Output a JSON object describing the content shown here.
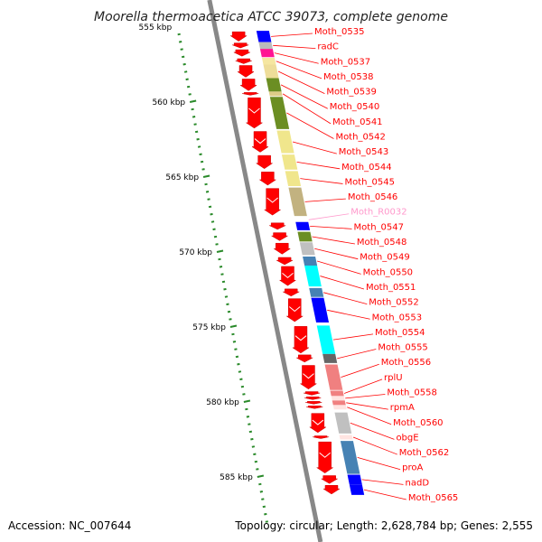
{
  "title": "Moorella thermoacetica ATCC 39073, complete genome",
  "footer": {
    "accession": "Accession: NC_007644",
    "summary": "Topology: circular; Length: 2,628,784 bp; Genes: 2,555"
  },
  "colors": {
    "label_line": "#ff0000",
    "rna_label": "#ff99cc",
    "cds_arrow": "#ff0000",
    "backbone": "#888888",
    "tick": "#2a8a2a"
  },
  "scale_labels": [
    {
      "text": "555 kbp",
      "kbp": 555
    },
    {
      "text": "560 kbp",
      "kbp": 560
    },
    {
      "text": "565 kbp",
      "kbp": 565
    },
    {
      "text": "570 kbp",
      "kbp": 570
    },
    {
      "text": "575 kbp",
      "kbp": 575
    },
    {
      "text": "580 kbp",
      "kbp": 580
    },
    {
      "text": "585 kbp",
      "kbp": 585
    }
  ],
  "genes": [
    {
      "label": "Moth_0535",
      "type": "cds",
      "color": "#0000ff",
      "start": 555.25,
      "end": 556.0
    },
    {
      "label": "radC",
      "type": "cds",
      "color": "#bbbbbb",
      "start": 556.0,
      "end": 556.45
    },
    {
      "label": "Moth_0537",
      "type": "cds",
      "color": "#ff1493",
      "start": 556.45,
      "end": 557.0
    },
    {
      "label": "Moth_0538",
      "type": "cds",
      "color": "#f5e6a0",
      "start": 557.05,
      "end": 557.5
    },
    {
      "label": "Moth_0539",
      "type": "cds",
      "color": "#eedd99",
      "start": 557.5,
      "end": 558.4
    },
    {
      "label": "Moth_0540",
      "type": "cds",
      "color": "#6b8e23",
      "start": 558.4,
      "end": 559.3
    },
    {
      "label": "Moth_0541",
      "type": "cds",
      "color": "#ddcc88",
      "start": 559.3,
      "end": 559.6
    },
    {
      "label": "Moth_0542",
      "type": "cds",
      "color": "#6b8e23",
      "start": 559.65,
      "end": 561.8
    },
    {
      "label": "Moth_0543",
      "type": "cds",
      "color": "#f0e68c",
      "start": 561.9,
      "end": 563.4
    },
    {
      "label": "Moth_0544",
      "type": "cds",
      "color": "#f0e68c",
      "start": 563.5,
      "end": 564.5
    },
    {
      "label": "Moth_0545",
      "type": "cds",
      "color": "#f0e68c",
      "start": 564.6,
      "end": 565.6
    },
    {
      "label": "Moth_0546",
      "type": "cds",
      "color": "#c2b280",
      "start": 565.7,
      "end": 567.6
    },
    {
      "label": "Moth_R0032",
      "type": "rna",
      "color": "#ff99cc",
      "start": 567.75,
      "end": 567.95
    },
    {
      "label": "Moth_0547",
      "type": "cds",
      "color": "#0000ff",
      "start": 568.0,
      "end": 568.55
    },
    {
      "label": "Moth_0548",
      "type": "cds",
      "color": "#6b8e23",
      "start": 568.65,
      "end": 569.3
    },
    {
      "label": "Moth_0549",
      "type": "cds",
      "color": "#c0c0c0",
      "start": 569.35,
      "end": 570.2
    },
    {
      "label": "Moth_0550",
      "type": "cds",
      "color": "#4682b4",
      "start": 570.3,
      "end": 570.9
    },
    {
      "label": "Moth_0551",
      "type": "cds",
      "color": "#00ffff",
      "start": 570.9,
      "end": 572.3
    },
    {
      "label": "Moth_0552",
      "type": "cds",
      "color": "#4682b4",
      "start": 572.4,
      "end": 573.0
    },
    {
      "label": "Moth_0553",
      "type": "cds",
      "color": "#0000ff",
      "start": 573.05,
      "end": 574.7
    },
    {
      "label": "Moth_0554",
      "type": "cds",
      "color": "#00ffff",
      "start": 574.9,
      "end": 576.8
    },
    {
      "label": "Moth_0555",
      "type": "cds",
      "color": "#666666",
      "start": 576.8,
      "end": 577.4
    },
    {
      "label": "Moth_0556",
      "type": "cds",
      "color": "#f08080",
      "start": 577.5,
      "end": 579.2
    },
    {
      "label": "rplU",
      "type": "cds",
      "color": "#f08080",
      "start": 579.25,
      "end": 579.6
    },
    {
      "label": "Moth_0558",
      "type": "cds",
      "color": "#ffe4e1",
      "start": 579.6,
      "end": 579.9
    },
    {
      "label": "rpmA",
      "type": "cds",
      "color": "#f08080",
      "start": 579.9,
      "end": 580.2
    },
    {
      "label": "Moth_0560",
      "type": "cds",
      "color": "#ffe4e1",
      "start": 580.2,
      "end": 580.5
    },
    {
      "label": "obgE",
      "type": "cds",
      "color": "#c0c0c0",
      "start": 580.7,
      "end": 582.1
    },
    {
      "label": "Moth_0562",
      "type": "cds",
      "color": "#ffe4e1",
      "start": 582.2,
      "end": 582.5
    },
    {
      "label": "proA",
      "type": "cds",
      "color": "#4682b4",
      "start": 582.6,
      "end": 584.8
    },
    {
      "label": "nadD",
      "type": "cds",
      "color": "#0000ff",
      "start": 584.85,
      "end": 585.5
    },
    {
      "label": "Moth_0565",
      "type": "cds",
      "color": "#0000ff",
      "start": 585.5,
      "end": 586.2
    }
  ]
}
